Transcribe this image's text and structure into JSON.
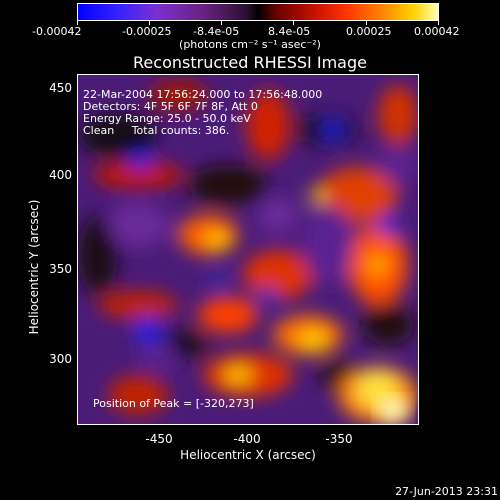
{
  "colorbar": {
    "ticks": [
      "-0.00042",
      "-0.00025",
      "-8.4e-05",
      "8.4e-05",
      "0.00025",
      "0.00042"
    ],
    "units": "(photons cm⁻² s⁻¹ asec⁻²)"
  },
  "title": "Reconstructed RHESSI Image",
  "annotations": {
    "time": "22-Mar-2004 17:56:24.000 to 17:56:48.000",
    "detectors": "Detectors: 4F 5F 6F 7F 8F, Att 0",
    "energy": "Energy Range: 25.0 - 50.0 keV",
    "clean": "Clean     Total counts: 386.",
    "peak": "Position of Peak = [-320,273]"
  },
  "axes": {
    "ylabel": "Heliocentric Y (arcsec)",
    "xlabel": "Heliocentric X (arcsec)",
    "yticks": [
      "450",
      "400",
      "350",
      "300"
    ],
    "xticks": [
      "-450",
      "-400",
      "-350"
    ]
  },
  "timestamp": "27-Jun-2013 23:31"
}
